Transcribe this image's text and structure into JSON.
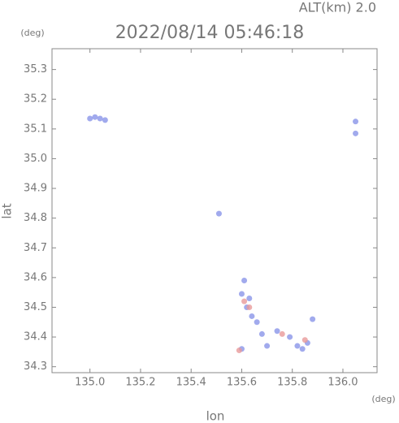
{
  "chart_data": {
    "type": "scatter",
    "title": "2022/08/14 05:46:18",
    "subtitle": "ALT(km) 2.0",
    "y_unit": "(deg)",
    "x_unit": "(deg)",
    "xlabel": "lon",
    "ylabel": "lat",
    "xlim": [
      134.85,
      136.135
    ],
    "ylim": [
      34.28,
      35.37
    ],
    "xticks": [
      {
        "value": 135,
        "label": "135.0"
      },
      135.2,
      135.4,
      135.6,
      135.8,
      {
        "value": 136,
        "label": "136.0"
      }
    ],
    "yticks": [
      34.3,
      34.4,
      34.5,
      34.6,
      34.7,
      34.8,
      34.9,
      {
        "value": 35,
        "label": "35.0"
      },
      35.1,
      35.2,
      35.3
    ],
    "series": [
      {
        "color": "#8a95e8",
        "x": [
          135.0,
          135.02,
          135.04,
          135.06,
          136.05,
          136.05,
          135.51,
          135.61,
          135.6,
          135.63,
          135.62,
          135.64,
          135.66,
          135.68,
          135.74,
          135.79,
          135.82,
          135.84,
          135.86,
          135.6,
          135.7,
          135.88
        ],
        "values": [
          35.135,
          35.14,
          35.135,
          35.13,
          35.125,
          35.085,
          34.815,
          34.59,
          34.545,
          34.53,
          34.5,
          34.47,
          34.45,
          34.41,
          34.42,
          34.4,
          34.37,
          34.36,
          34.38,
          34.36,
          34.37,
          34.46
        ]
      },
      {
        "color": "#e89a9a",
        "x": [
          135.61,
          135.63,
          135.76,
          135.85,
          135.59
        ],
        "values": [
          34.52,
          34.5,
          34.41,
          34.39,
          34.355
        ]
      }
    ]
  }
}
